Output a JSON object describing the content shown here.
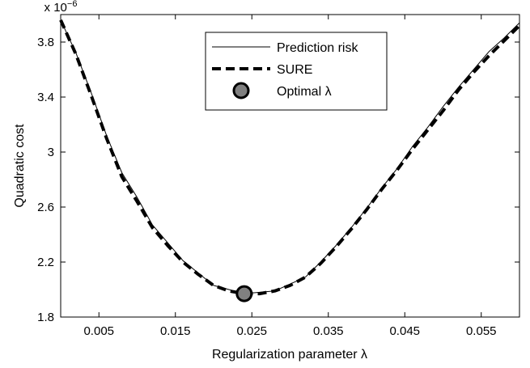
{
  "chart_data": {
    "type": "line",
    "xlabel": "Regularization parameter λ",
    "ylabel": "Quadratic cost",
    "y_multiplier_base": "x 10",
    "y_multiplier_exp": "−6",
    "xlim": [
      0,
      0.06
    ],
    "ylim": [
      1.8,
      4.0
    ],
    "x_ticks": [
      0.005,
      0.015,
      0.025,
      0.035,
      0.045,
      0.055
    ],
    "x_tick_labels": [
      "0.005",
      "0.015",
      "0.025",
      "0.035",
      "0.045",
      "0.055"
    ],
    "y_ticks": [
      1.8,
      2.2,
      2.6,
      3.0,
      3.4,
      3.8
    ],
    "y_tick_labels": [
      "1.8",
      "2.2",
      "2.6",
      "3",
      "3.4",
      "3.8"
    ],
    "grid": false,
    "legend_position": "top-center",
    "series": [
      {
        "name": "Prediction risk",
        "style": "solid-thin",
        "x": [
          0,
          0.002,
          0.004,
          0.006,
          0.008,
          0.01,
          0.012,
          0.014,
          0.016,
          0.018,
          0.02,
          0.022,
          0.024,
          0.026,
          0.028,
          0.03,
          0.032,
          0.034,
          0.036,
          0.038,
          0.04,
          0.042,
          0.044,
          0.046,
          0.048,
          0.05,
          0.052,
          0.054,
          0.056,
          0.058,
          0.06
        ],
        "values": [
          3.96,
          3.72,
          3.43,
          3.12,
          2.85,
          2.67,
          2.47,
          2.34,
          2.21,
          2.12,
          2.03,
          2.0,
          1.97,
          1.98,
          1.99,
          2.04,
          2.09,
          2.2,
          2.32,
          2.45,
          2.59,
          2.74,
          2.88,
          3.04,
          3.18,
          3.33,
          3.47,
          3.6,
          3.73,
          3.83,
          3.94
        ]
      },
      {
        "name": "SURE",
        "style": "dashed-thick",
        "x": [
          0,
          0.002,
          0.004,
          0.006,
          0.008,
          0.01,
          0.012,
          0.014,
          0.016,
          0.018,
          0.02,
          0.022,
          0.024,
          0.026,
          0.028,
          0.03,
          0.032,
          0.034,
          0.036,
          0.038,
          0.04,
          0.042,
          0.044,
          0.046,
          0.048,
          0.05,
          0.052,
          0.054,
          0.056,
          0.058,
          0.06
        ],
        "values": [
          3.96,
          3.71,
          3.41,
          3.1,
          2.82,
          2.64,
          2.45,
          2.32,
          2.2,
          2.11,
          2.03,
          1.99,
          1.97,
          1.97,
          1.99,
          2.03,
          2.09,
          2.19,
          2.31,
          2.44,
          2.58,
          2.73,
          2.87,
          3.02,
          3.16,
          3.3,
          3.45,
          3.58,
          3.7,
          3.81,
          3.92
        ]
      }
    ],
    "markers": [
      {
        "name": "Optimal λ",
        "x": 0.024,
        "y": 1.97
      }
    ],
    "legend": [
      {
        "label": "Prediction risk",
        "style": "solid-thin"
      },
      {
        "label": "SURE",
        "style": "dashed-thick"
      },
      {
        "label": "Optimal λ",
        "style": "circle-marker"
      }
    ],
    "colors": {
      "line": "#000000",
      "marker_fill": "#808080",
      "marker_edge": "#000000"
    }
  }
}
